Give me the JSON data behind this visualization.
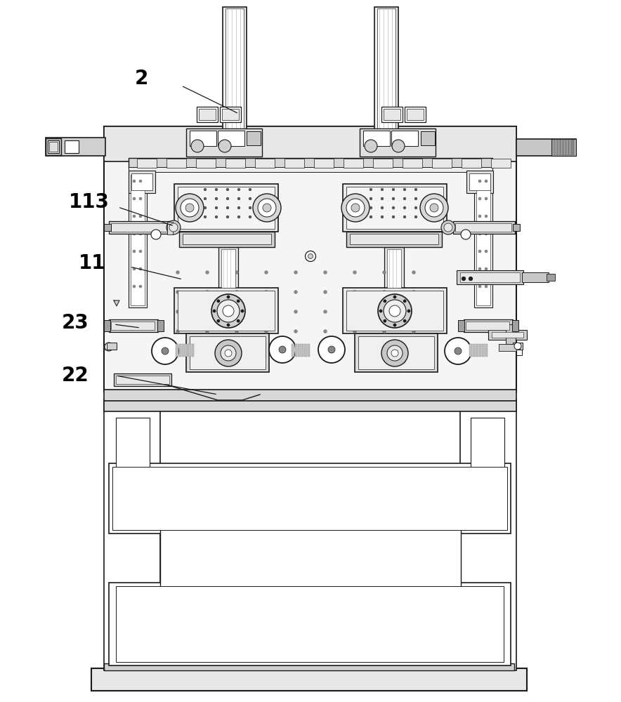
{
  "bg_color": "#ffffff",
  "lc": "#1a1a1a",
  "label_color": "#000000",
  "label_fontsize": 20,
  "arrow_lw": 1.0
}
